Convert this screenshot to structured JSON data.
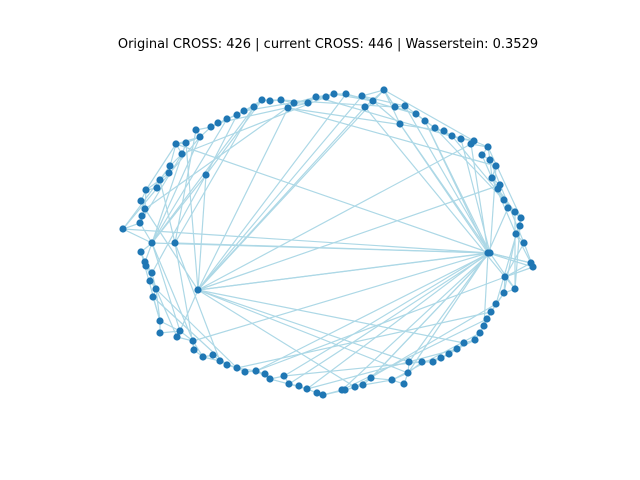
{
  "figure": {
    "title": "Original CROSS: 426 | current CROSS: 446 | Wasserstein: 0.3529"
  },
  "colors": {
    "edge": "#add8e6",
    "node": "#1f77b4",
    "background": "#ffffff"
  }
}
